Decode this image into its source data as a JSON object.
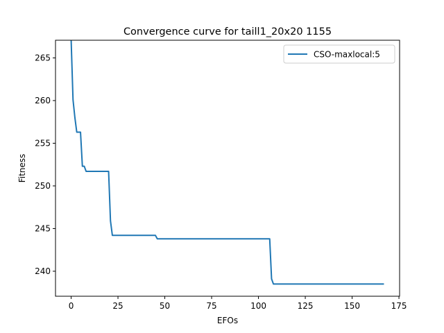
{
  "chart_data": {
    "type": "line",
    "title": "Convergence curve for taill1_20x20 1155",
    "xlabel": "EFOs",
    "ylabel": "Fitness",
    "xlim": [
      -8.35,
      175.35
    ],
    "ylim": [
      237.07,
      267.07
    ],
    "xticks": [
      0,
      25,
      50,
      75,
      100,
      125,
      150,
      175
    ],
    "yticks": [
      240,
      245,
      250,
      255,
      260,
      265
    ],
    "grid": false,
    "legend_position": "top-right",
    "series": [
      {
        "name": "CSO-maxlocal:5",
        "color": "#1f77b4",
        "x": [
          0,
          1,
          2,
          3,
          4,
          5,
          6,
          7,
          8,
          20,
          21,
          22,
          45,
          46,
          106,
          107,
          108,
          167
        ],
        "y": [
          267.1,
          260.1,
          258.0,
          256.3,
          256.3,
          256.3,
          252.3,
          252.3,
          251.7,
          251.7,
          245.9,
          244.2,
          244.2,
          243.8,
          243.8,
          239.1,
          238.5,
          238.5
        ]
      }
    ]
  }
}
